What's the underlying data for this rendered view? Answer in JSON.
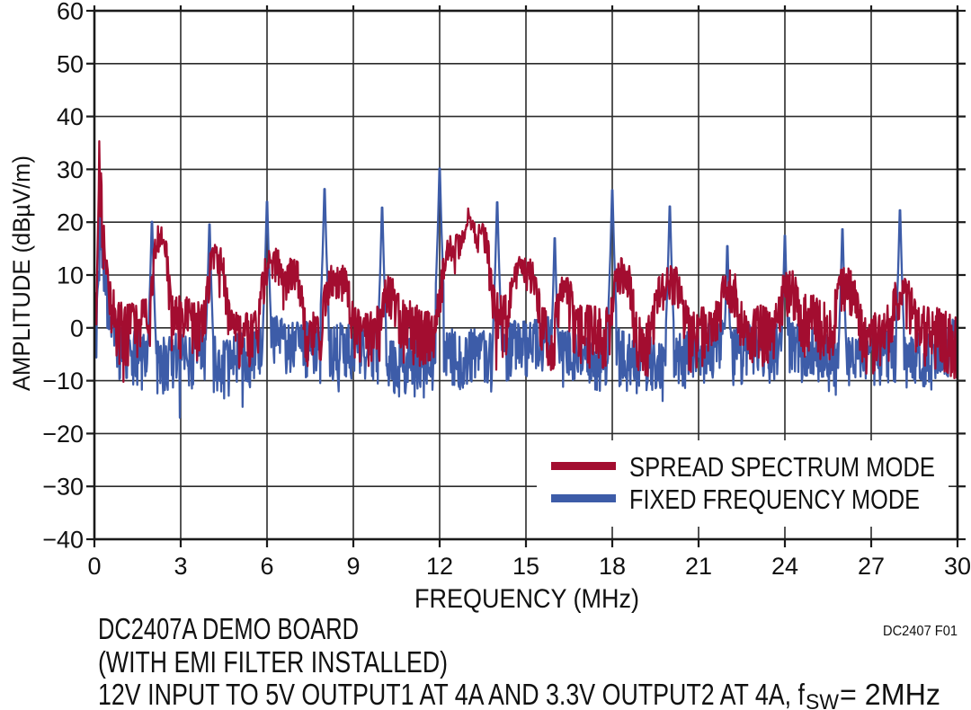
{
  "figure": {
    "caption_line1": "DC2407A DEMO BOARD",
    "caption_line2": "(WITH EMI FILTER INSTALLED)",
    "caption_line3_main": "12V INPUT TO 5V OUTPUT1 AT 4A AND 3.3V OUTPUT2 AT 4A, f",
    "caption_line3_subscript": "SW",
    "caption_line3_end": "= 2MHz",
    "figure_ref": "DC2407 F01"
  },
  "chart_data": {
    "type": "line",
    "title": "",
    "xlabel": "FREQUENCY (MHz)",
    "ylabel": "AMPLITUDE (dBµV/m)",
    "xlim": [
      0,
      30
    ],
    "ylim": [
      -40,
      60
    ],
    "grid": "on",
    "x_ticks": {
      "values": [
        0,
        3,
        6,
        9,
        12,
        15,
        18,
        21,
        24,
        27,
        30
      ],
      "labels": [
        "0",
        "3",
        "6",
        "9",
        "12",
        "15",
        "18",
        "21",
        "24",
        "27",
        "30"
      ]
    },
    "y_ticks": {
      "values": [
        60,
        50,
        40,
        30,
        20,
        10,
        0,
        -10,
        -20,
        -30,
        -40
      ],
      "labels": [
        "60",
        "50",
        "40",
        "30",
        "20",
        "10",
        "0",
        "−10",
        "−20",
        "−30",
        "−40"
      ]
    },
    "colors": {
      "axis": "#1a1a1a",
      "grid": "#2b2b2b",
      "spread_spectrum": "#A30D30",
      "fixed_frequency": "#3D5CA8"
    },
    "legend": {
      "position": "bottom-right",
      "entries": [
        {
          "label": "SPREAD SPECTRUM MODE",
          "color": "#A30D30"
        },
        {
          "label": "FIXED FREQUENCY MODE",
          "color": "#3D5CA8"
        }
      ]
    },
    "series": [
      {
        "name": "FIXED FREQUENCY MODE",
        "color": "#3D5CA8",
        "style": "dense-noise-line",
        "noise_floor_dB": {
          "top": 2,
          "bottom": -9
        },
        "low_frequency_spike": {
          "f_MHz": 0.2,
          "peak_dB": 23
        },
        "harmonic_peaks": [
          {
            "f_MHz": 2,
            "peak_dB": 23.8
          },
          {
            "f_MHz": 4,
            "peak_dB": 23.3
          },
          {
            "f_MHz": 6,
            "peak_dB": 27.6
          },
          {
            "f_MHz": 8,
            "peak_dB": 30.0
          },
          {
            "f_MHz": 10,
            "peak_dB": 26.5
          },
          {
            "f_MHz": 12,
            "peak_dB": 33.9
          },
          {
            "f_MHz": 14,
            "peak_dB": 27.5
          },
          {
            "f_MHz": 16,
            "peak_dB": 20.7
          },
          {
            "f_MHz": 18,
            "peak_dB": 29.8
          },
          {
            "f_MHz": 20,
            "peak_dB": 26.7
          },
          {
            "f_MHz": 22,
            "peak_dB": 19.2
          },
          {
            "f_MHz": 24,
            "peak_dB": 21.2
          },
          {
            "f_MHz": 26,
            "peak_dB": 22.4
          },
          {
            "f_MHz": 28,
            "peak_dB": 26.0
          }
        ]
      },
      {
        "name": "SPREAD SPECTRUM MODE",
        "color": "#A30D30",
        "style": "dense-noise-line",
        "noise_floor_dB": {
          "top": 7,
          "bottom": -6
        },
        "low_frequency_spike": {
          "f_MHz": 0.17,
          "peak_dB": 35.3
        },
        "humps": [
          {
            "f_MHz": 2.3,
            "width_MHz": 0.3,
            "peak_dB": 17.8
          },
          {
            "f_MHz": 4.25,
            "width_MHz": 0.35,
            "peak_dB": 16.0
          },
          {
            "f_MHz": 6.2,
            "width_MHz": 0.45,
            "peak_dB": 14.3
          },
          {
            "f_MHz": 6.95,
            "width_MHz": 0.3,
            "peak_dB": 13.5
          },
          {
            "f_MHz": 8.45,
            "width_MHz": 0.5,
            "peak_dB": 14.0
          },
          {
            "f_MHz": 10.25,
            "width_MHz": 0.3,
            "peak_dB": 9.5
          },
          {
            "f_MHz": 12.55,
            "width_MHz": 0.55,
            "peak_dB": 16.5
          },
          {
            "f_MHz": 13.35,
            "width_MHz": 0.45,
            "peak_dB": 17.8
          },
          {
            "f_MHz": 14.95,
            "width_MHz": 0.5,
            "peak_dB": 12.8
          },
          {
            "f_MHz": 16.35,
            "width_MHz": 0.3,
            "peak_dB": 10.5
          },
          {
            "f_MHz": 18.35,
            "width_MHz": 0.4,
            "peak_dB": 13.5
          },
          {
            "f_MHz": 19.95,
            "width_MHz": 0.55,
            "peak_dB": 12.5
          },
          {
            "f_MHz": 22.1,
            "width_MHz": 0.35,
            "peak_dB": 10.5
          },
          {
            "f_MHz": 24.1,
            "width_MHz": 0.35,
            "peak_dB": 9.5
          },
          {
            "f_MHz": 26.15,
            "width_MHz": 0.4,
            "peak_dB": 10.0
          },
          {
            "f_MHz": 28.1,
            "width_MHz": 0.4,
            "peak_dB": 9.0
          }
        ]
      }
    ]
  }
}
